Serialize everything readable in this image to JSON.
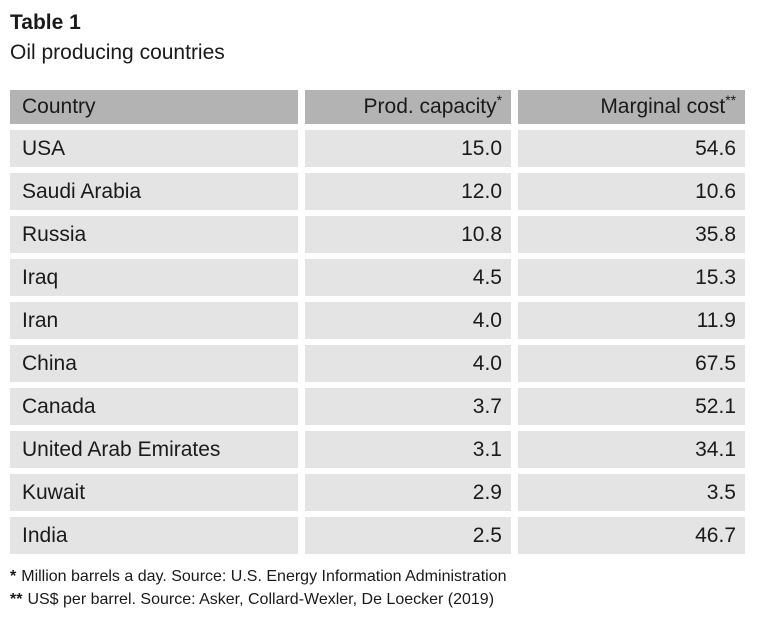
{
  "page": {
    "title": "Table 1",
    "subtitle": "Oil producing countries"
  },
  "table": {
    "columns": [
      {
        "label": "Country",
        "marker": ""
      },
      {
        "label": "Prod. capacity",
        "marker": "*"
      },
      {
        "label": "Marginal cost",
        "marker": "**"
      }
    ],
    "rows": [
      {
        "country": "USA",
        "capacity": "15.0",
        "cost": "54.6"
      },
      {
        "country": "Saudi Arabia",
        "capacity": "12.0",
        "cost": "10.6"
      },
      {
        "country": "Russia",
        "capacity": "10.8",
        "cost": "35.8"
      },
      {
        "country": "Iraq",
        "capacity": "4.5",
        "cost": "15.3"
      },
      {
        "country": "Iran",
        "capacity": "4.0",
        "cost": "11.9"
      },
      {
        "country": "China",
        "capacity": "4.0",
        "cost": "67.5"
      },
      {
        "country": "Canada",
        "capacity": "3.7",
        "cost": "52.1"
      },
      {
        "country": "United Arab Emirates",
        "capacity": "3.1",
        "cost": "34.1"
      },
      {
        "country": "Kuwait",
        "capacity": "2.9",
        "cost": "3.5"
      },
      {
        "country": "India",
        "capacity": "2.5",
        "cost": "46.7"
      }
    ]
  },
  "footnotes": [
    {
      "marker": "*",
      "text": "Million barrels a day. Source: U.S. Energy Information Administration"
    },
    {
      "marker": "**",
      "text": "US$ per barrel. Source: Asker, Collard-Wexler, De Loecker (2019)"
    }
  ],
  "colors": {
    "header_bg": "#b3b3b3",
    "cell_bg": "#e4e4e4",
    "text": "#1a1a1a",
    "background": "#ffffff"
  }
}
